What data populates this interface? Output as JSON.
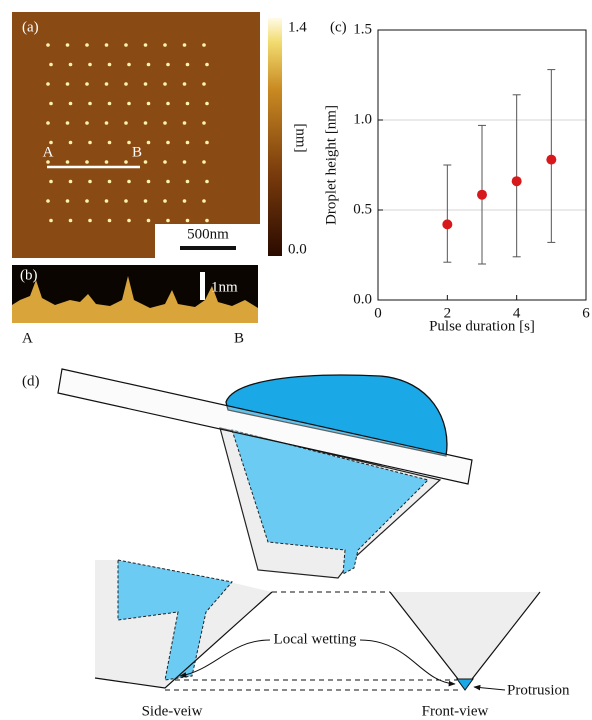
{
  "chart_data": {
    "type": "scatter",
    "label": "(c)",
    "x_label": "Pulse duration [s]",
    "y_label": "Droplet height [nm]",
    "x": [
      2,
      3,
      4,
      5
    ],
    "values": [
      0.42,
      0.585,
      0.66,
      0.78
    ],
    "lower": [
      0.21,
      0.2,
      0.24,
      0.32
    ],
    "upper": [
      0.75,
      0.97,
      1.14,
      1.28
    ],
    "color": "#d7191c",
    "xlim": [
      0,
      6
    ],
    "xticks": [
      0,
      2,
      4,
      6
    ],
    "ylim": [
      0,
      1.5
    ],
    "yticks": [
      {
        "value": 0,
        "label": "0.0"
      },
      {
        "value": 0.5,
        "label": "0.5"
      },
      {
        "value": 1,
        "label": "1.0"
      },
      {
        "value": 1.5,
        "label": "1.5"
      }
    ],
    "grid": true
  },
  "panel_a": {
    "label": "(a)",
    "marker_a": "A",
    "marker_b": "B",
    "scale_bar": "500nm",
    "colorbar_max": "1.4",
    "colorbar_min": "0.0",
    "colorbar_unit": "[nm]"
  },
  "panel_b": {
    "label": "(b)",
    "scale_bar": "1nm",
    "start": "A",
    "end": "B"
  },
  "panel_d": {
    "label": "(d)",
    "local_wetting": "Local wetting",
    "protrusion": "Protrusion",
    "side_view": "Side-veiw",
    "front_view": "Front-view"
  }
}
